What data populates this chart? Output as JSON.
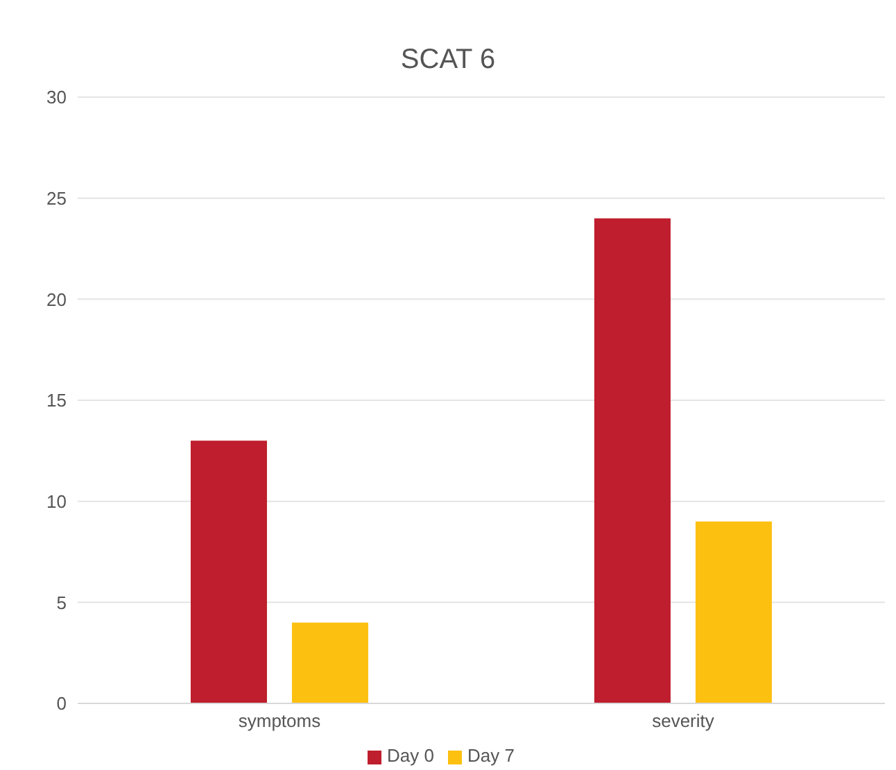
{
  "chart_data": {
    "type": "bar",
    "title": "SCAT 6",
    "categories": [
      "symptoms",
      "severity"
    ],
    "series": [
      {
        "name": "Day 0",
        "color": "#be1e2d",
        "values": [
          13,
          24
        ]
      },
      {
        "name": "Day 7",
        "color": "#fcc010",
        "values": [
          4,
          9
        ]
      }
    ],
    "ylim": [
      0,
      30
    ],
    "yticks": [
      0,
      5,
      10,
      15,
      20,
      25,
      30
    ],
    "grid": "y",
    "legend": "bottom"
  }
}
